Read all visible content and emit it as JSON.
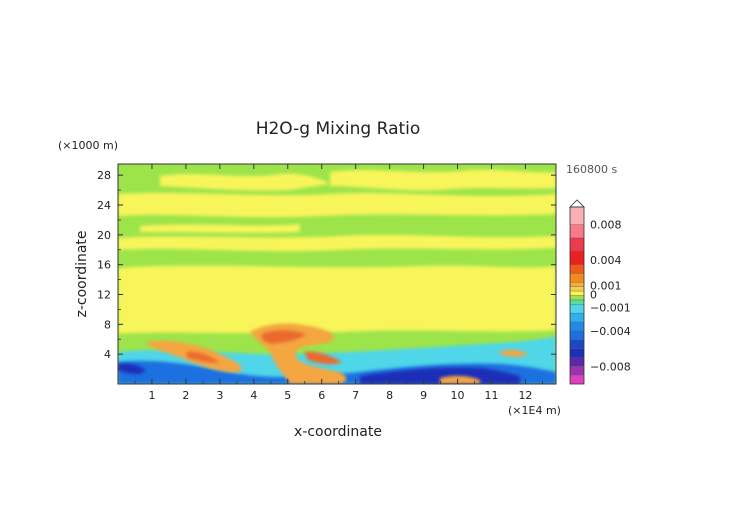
{
  "chart_data": {
    "type": "heatmap",
    "title": "H2O-g Mixing Ratio",
    "xlabel": "x-coordinate",
    "ylabel": "z-coordinate",
    "x_unit": "(×1E4 m)",
    "y_unit": "(×1000 m)",
    "time_label": "160800 s",
    "xlim": [
      0,
      12.9
    ],
    "ylim": [
      0,
      29.5
    ],
    "x_ticks": [
      "1",
      "2",
      "3",
      "4",
      "5",
      "6",
      "7",
      "8",
      "9",
      "10",
      "11",
      "12"
    ],
    "y_ticks": [
      "4",
      "8",
      "12",
      "16",
      "20",
      "24",
      "28"
    ],
    "colorbar_labels": [
      "0.008",
      "0.004",
      "0.001",
      "0",
      "−0.001",
      "−0.004",
      "−0.008"
    ],
    "colorbar_values": [
      0.008,
      0.004,
      0.001,
      0,
      -0.001,
      -0.004,
      -0.008
    ],
    "colorbar_range": [
      -0.01,
      0.01
    ],
    "colors": {
      "background_field": "#9ce44a",
      "near_zero_positive": "#f7f55a",
      "weak_negative": "#4fd6e8",
      "moderate_negative": "#1f6fe0",
      "strong_negative": "#1c2fb8",
      "weak_positive": "#f4a640",
      "moderate_positive": "#ea6a2e"
    }
  }
}
